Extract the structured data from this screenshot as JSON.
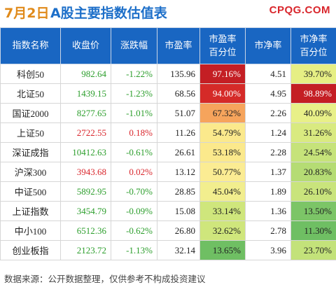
{
  "header": {
    "date": "7月2日",
    "title": "A股主要指数估值表",
    "brand": "CPQG.COM"
  },
  "columns": [
    {
      "label": "指数名称"
    },
    {
      "label": "收盘价"
    },
    {
      "label": "涨跌幅"
    },
    {
      "label": "市盈率"
    },
    {
      "label": "市盈率\n百分位"
    },
    {
      "label": "市净率"
    },
    {
      "label": "市净率\n百分位"
    }
  ],
  "colors": {
    "header_bg": "#1966c2",
    "up": "#d9262c",
    "down": "#2c9e2c"
  },
  "rows": [
    {
      "name": "科创50",
      "close": "982.64",
      "change": "-1.22%",
      "dir": "down",
      "pe": "135.96",
      "pe_pct": "97.16%",
      "pe_bg": "#c41e24",
      "pe_fg": "#ffffff",
      "pb": "4.51",
      "pb_pct": "39.70%",
      "pb_bg": "#e6ef84",
      "pb_fg": "#222222"
    },
    {
      "name": "北证50",
      "close": "1439.15",
      "change": "-1.23%",
      "dir": "down",
      "pe": "68.56",
      "pe_pct": "94.00%",
      "pe_bg": "#d52a28",
      "pe_fg": "#ffffff",
      "pb": "4.95",
      "pb_pct": "98.89%",
      "pb_bg": "#c41e24",
      "pb_fg": "#ffffff"
    },
    {
      "name": "国证2000",
      "close": "8277.65",
      "change": "-1.01%",
      "dir": "down",
      "pe": "51.07",
      "pe_pct": "67.32%",
      "pe_bg": "#f6a45c",
      "pe_fg": "#222222",
      "pb": "2.26",
      "pb_pct": "40.09%",
      "pb_bg": "#e8f088",
      "pb_fg": "#222222"
    },
    {
      "name": "上证50",
      "close": "2722.55",
      "change": "0.18%",
      "dir": "up",
      "pe": "11.26",
      "pe_pct": "54.79%",
      "pe_bg": "#fbe98c",
      "pe_fg": "#222222",
      "pb": "1.24",
      "pb_pct": "31.26%",
      "pb_bg": "#d9ea80",
      "pb_fg": "#222222"
    },
    {
      "name": "深证成指",
      "close": "10412.63",
      "change": "-0.61%",
      "dir": "down",
      "pe": "26.61",
      "pe_pct": "53.18%",
      "pe_bg": "#fbe98c",
      "pe_fg": "#222222",
      "pb": "2.28",
      "pb_pct": "24.54%",
      "pb_bg": "#c6e37a",
      "pb_fg": "#222222"
    },
    {
      "name": "沪深300",
      "close": "3943.68",
      "change": "0.02%",
      "dir": "up",
      "pe": "13.12",
      "pe_pct": "50.77%",
      "pe_bg": "#fbec93",
      "pe_fg": "#222222",
      "pb": "1.37",
      "pb_pct": "20.83%",
      "pb_bg": "#b5dc74",
      "pb_fg": "#222222"
    },
    {
      "name": "中证500",
      "close": "5892.95",
      "change": "-0.70%",
      "dir": "down",
      "pe": "28.85",
      "pe_pct": "45.04%",
      "pe_bg": "#f2ee8e",
      "pe_fg": "#222222",
      "pb": "1.89",
      "pb_pct": "26.10%",
      "pb_bg": "#c9e47c",
      "pb_fg": "#222222"
    },
    {
      "name": "上证指数",
      "close": "3454.79",
      "change": "-0.09%",
      "dir": "down",
      "pe": "15.08",
      "pe_pct": "33.14%",
      "pe_bg": "#cfe67c",
      "pe_fg": "#222222",
      "pb": "1.36",
      "pb_pct": "13.50%",
      "pb_bg": "#7cc567",
      "pb_fg": "#222222"
    },
    {
      "name": "中小100",
      "close": "6512.36",
      "change": "-0.62%",
      "dir": "down",
      "pe": "26.80",
      "pe_pct": "32.62%",
      "pe_bg": "#cfe67c",
      "pe_fg": "#222222",
      "pb": "2.78",
      "pb_pct": "11.30%",
      "pb_bg": "#6fbf63",
      "pb_fg": "#222222"
    },
    {
      "name": "创业板指",
      "close": "2123.72",
      "change": "-1.13%",
      "dir": "down",
      "pe": "32.14",
      "pe_pct": "13.65%",
      "pe_bg": "#6fbf63",
      "pe_fg": "#222222",
      "pb": "3.96",
      "pb_pct": "23.70%",
      "pb_bg": "#c3e27a",
      "pb_fg": "#222222"
    }
  ],
  "footer": {
    "source": "数据来源：公开数据整理，仅供参考不构成投资建议"
  }
}
